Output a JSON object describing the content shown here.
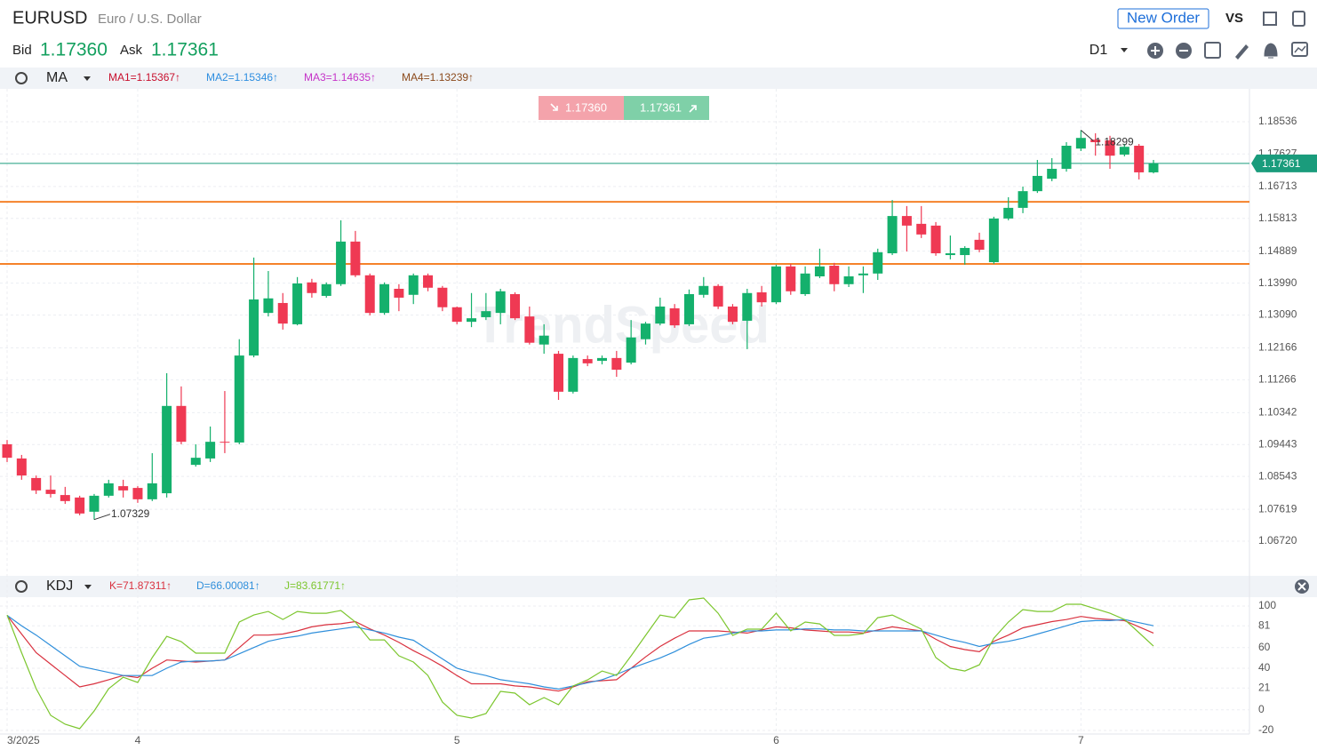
{
  "header": {
    "symbol": "EURUSD",
    "name": "Euro / U.S. Dollar",
    "new_order": "New Order",
    "vs": "VS",
    "bid_label": "Bid",
    "bid": "1.17360",
    "ask_label": "Ask",
    "ask": "1.17361",
    "timeframe": "D1"
  },
  "chart_data": [
    {
      "type": "candlestick",
      "indicator": "MA",
      "legend": [
        {
          "label": "MA1=1.15367↑",
          "color": "#c8102e"
        },
        {
          "label": "MA2=1.15346↑",
          "color": "#2e8ee0"
        },
        {
          "label": "MA3=1.14635↑",
          "color": "#c533c8"
        },
        {
          "label": "MA4=1.13239↑",
          "color": "#8b4a1c"
        }
      ],
      "watermark": "TrendSpeed",
      "up_color": "#14b06c",
      "down_color": "#ef3953",
      "open": [
        1.0945,
        1.0905,
        1.085,
        1.0817,
        1.0802,
        1.0795,
        1.0755,
        1.08,
        1.0827,
        1.0822,
        1.079,
        1.0807,
        1.1053,
        1.0887,
        1.0905,
        1.0952,
        1.095,
        1.1195,
        1.1315,
        1.1343,
        1.1283,
        1.1401,
        1.1363,
        1.1396,
        1.1516,
        1.1421,
        1.1315,
        1.1383,
        1.1366,
        1.1421,
        1.1386,
        1.1331,
        1.129,
        1.1303,
        1.1315,
        1.1368,
        1.1305,
        1.1226,
        1.12,
        1.1093,
        1.1185,
        1.118,
        1.1188,
        1.1175,
        1.1241,
        1.1285,
        1.1328,
        1.1283,
        1.1366,
        1.1391,
        1.1333,
        1.1293,
        1.1373,
        1.1345,
        1.1446,
        1.1368,
        1.1418,
        1.1448,
        1.1396,
        1.1421,
        1.1426,
        1.1483,
        1.1588,
        1.1566,
        1.1561,
        1.1478,
        1.1478,
        1.1521,
        1.1458,
        1.1581,
        1.1611,
        1.1658,
        1.1693,
        1.1721,
        1.1778,
        1.1803,
        1.1801,
        1.1761,
        1.1786,
        1.1711
      ],
      "high": [
        1.0957,
        1.0915,
        1.0857,
        1.0857,
        1.0825,
        1.08,
        1.0805,
        1.0845,
        1.0845,
        1.0827,
        1.092,
        1.1145,
        1.1108,
        1.0945,
        1.0995,
        1.1095,
        1.1241,
        1.1471,
        1.1433,
        1.1371,
        1.1416,
        1.1411,
        1.1401,
        1.1576,
        1.1546,
        1.1426,
        1.1401,
        1.1396,
        1.1426,
        1.1426,
        1.1391,
        1.1333,
        1.1371,
        1.1371,
        1.1383,
        1.1373,
        1.1333,
        1.1283,
        1.1208,
        1.1195,
        1.1195,
        1.1195,
        1.1208,
        1.1295,
        1.129,
        1.1358,
        1.134,
        1.1381,
        1.1416,
        1.1396,
        1.134,
        1.1383,
        1.1391,
        1.1451,
        1.1453,
        1.1446,
        1.1496,
        1.1456,
        1.1446,
        1.1446,
        1.1496,
        1.1633,
        1.1616,
        1.1616,
        1.1571,
        1.1533,
        1.1503,
        1.1541,
        1.1586,
        1.1641,
        1.1671,
        1.1746,
        1.1751,
        1.1796,
        1.18299,
        1.1821,
        1.1814,
        1.1791,
        1.1791,
        1.1746
      ],
      "low": [
        1.0895,
        1.0845,
        1.0805,
        1.0795,
        1.0777,
        1.0745,
        1.07329,
        1.0795,
        1.0795,
        1.078,
        1.0785,
        1.0795,
        1.0945,
        1.0882,
        1.0895,
        1.092,
        1.0945,
        1.119,
        1.1305,
        1.1268,
        1.128,
        1.1358,
        1.1358,
        1.1391,
        1.1416,
        1.1308,
        1.131,
        1.132,
        1.134,
        1.1376,
        1.132,
        1.1283,
        1.1275,
        1.1295,
        1.1283,
        1.1295,
        1.1226,
        1.12,
        1.107,
        1.1088,
        1.1165,
        1.117,
        1.1135,
        1.117,
        1.1226,
        1.128,
        1.1273,
        1.1278,
        1.1358,
        1.1326,
        1.1283,
        1.1213,
        1.1333,
        1.134,
        1.1366,
        1.1363,
        1.1413,
        1.1376,
        1.1388,
        1.1371,
        1.1408,
        1.1478,
        1.1488,
        1.1526,
        1.1476,
        1.1466,
        1.1451,
        1.1486,
        1.1453,
        1.1576,
        1.1596,
        1.1653,
        1.1686,
        1.1713,
        1.1771,
        1.1758,
        1.1721,
        1.1756,
        1.1691,
        1.1708
      ],
      "close": [
        1.0907,
        1.0857,
        1.0815,
        1.0805,
        1.0785,
        1.075,
        1.08,
        1.0835,
        1.0815,
        1.079,
        1.0835,
        1.1053,
        1.0952,
        1.0907,
        1.0952,
        1.095,
        1.1195,
        1.1353,
        1.1356,
        1.1285,
        1.1398,
        1.1371,
        1.1396,
        1.1516,
        1.1421,
        1.1315,
        1.1396,
        1.1358,
        1.1421,
        1.1386,
        1.1331,
        1.129,
        1.13,
        1.132,
        1.1376,
        1.13,
        1.1231,
        1.1251,
        1.1093,
        1.1188,
        1.1173,
        1.1188,
        1.1155,
        1.1246,
        1.1285,
        1.1333,
        1.128,
        1.1368,
        1.1391,
        1.1333,
        1.129,
        1.1371,
        1.1345,
        1.1446,
        1.1376,
        1.1426,
        1.1446,
        1.1396,
        1.1418,
        1.1426,
        1.1486,
        1.1588,
        1.1561,
        1.1536,
        1.1483,
        1.1483,
        1.1498,
        1.1493,
        1.1581,
        1.1611,
        1.1658,
        1.1701,
        1.1721,
        1.1786,
        1.1808,
        1.1796,
        1.1758,
        1.1783,
        1.1711,
        1.17361
      ],
      "ylim": [
        1.05769,
        1.19462
      ],
      "yticks": [
        1.18536,
        1.17627,
        1.16713,
        1.15813,
        1.14889,
        {
          "value": 1.1399,
          "label": "1.13990"
        },
        {
          "value": 1.1309,
          "label": "1.13090"
        },
        1.12166,
        1.11266,
        1.10342,
        1.09443,
        1.08543,
        1.07619,
        {
          "value": 1.0672,
          "label": "1.06720"
        }
      ],
      "x_labels": [
        {
          "index": 0,
          "label": "3/2025"
        },
        {
          "index": 9,
          "label": "4"
        },
        {
          "index": 31,
          "label": "5"
        },
        {
          "index": 53,
          "label": "6"
        },
        {
          "index": 74,
          "label": "7"
        }
      ],
      "hlines": [
        {
          "value": 1.1628,
          "color": "#f5822a"
        },
        {
          "value": 1.1453,
          "color": "#f5822a"
        }
      ],
      "current_price": 1.17361,
      "current_color": "#1a9c7c"
    },
    {
      "type": "line",
      "indicator": "KDJ",
      "series": [
        {
          "name": "K=71.87311↑",
          "color": "#d9313f",
          "values": [
            91,
            73,
            55,
            44,
            33,
            22,
            25,
            29,
            33,
            31,
            40,
            48,
            47,
            46,
            47,
            48,
            60,
            72,
            72,
            73,
            76,
            80,
            82,
            83,
            85,
            78,
            72,
            65,
            57,
            50,
            42,
            33,
            25,
            25,
            25,
            23,
            22,
            20,
            18,
            22,
            27,
            28,
            29,
            40,
            51,
            61,
            69,
            76,
            76,
            76,
            75,
            74,
            77,
            80,
            79,
            77,
            76,
            75,
            75,
            74,
            77,
            80,
            78,
            76,
            68,
            61,
            58,
            56,
            66,
            72,
            79,
            82,
            85,
            87,
            90,
            88,
            87,
            86,
            80,
            74
          ]
        },
        {
          "name": "D=66.00081↑",
          "color": "#2f8fdb",
          "values": [
            91,
            81,
            72,
            62,
            52,
            42,
            39,
            36,
            33,
            33,
            33,
            40,
            46,
            47,
            47,
            48,
            54,
            60,
            66,
            69,
            71,
            74,
            76,
            78,
            80,
            77,
            74,
            70,
            67,
            58,
            49,
            40,
            36,
            33,
            29,
            27,
            25,
            22,
            20,
            23,
            26,
            29,
            34,
            40,
            45,
            50,
            56,
            63,
            69,
            71,
            74,
            76,
            76,
            77,
            77,
            78,
            78,
            77,
            77,
            76,
            76,
            76,
            76,
            76,
            72,
            68,
            65,
            61,
            64,
            66,
            69,
            73,
            77,
            81,
            85,
            86,
            86,
            87,
            84,
            81
          ]
        },
        {
          "name": "J=83.61771↑",
          "color": "#7cc62e",
          "values": [
            91.4,
            55,
            20.3,
            -5.4,
            -14,
            -18.3,
            -1.1,
            20.3,
            31.4,
            26.3,
            50.3,
            70.8,
            65.7,
            54.6,
            54.6,
            54.6,
            84.6,
            91.4,
            94.8,
            87.1,
            94.8,
            93.1,
            93.1,
            95.7,
            84.6,
            67.4,
            67.4,
            52,
            46,
            33.1,
            7.4,
            -5.4,
            -8,
            -3.7,
            17.7,
            16,
            4.9,
            11.7,
            4.9,
            22.9,
            28.8,
            37.4,
            33.1,
            52,
            71.7,
            91.4,
            88.8,
            106,
            107.7,
            93.1,
            71.7,
            77.7,
            77.7,
            93.1,
            76,
            84.6,
            82.8,
            71.7,
            71.7,
            73.4,
            88.8,
            91.4,
            84.6,
            77.7,
            50.3,
            40,
            37.4,
            43.4,
            69.1,
            84.6,
            96.6,
            94.8,
            94.8,
            101.7,
            101.7,
            97.4,
            93.1,
            87.1,
            74.3,
            61.4
          ]
        }
      ],
      "ylim": [
        -23.4,
        108.6
      ],
      "yticks": [
        100,
        81,
        60,
        40,
        21,
        0,
        -20
      ]
    }
  ]
}
